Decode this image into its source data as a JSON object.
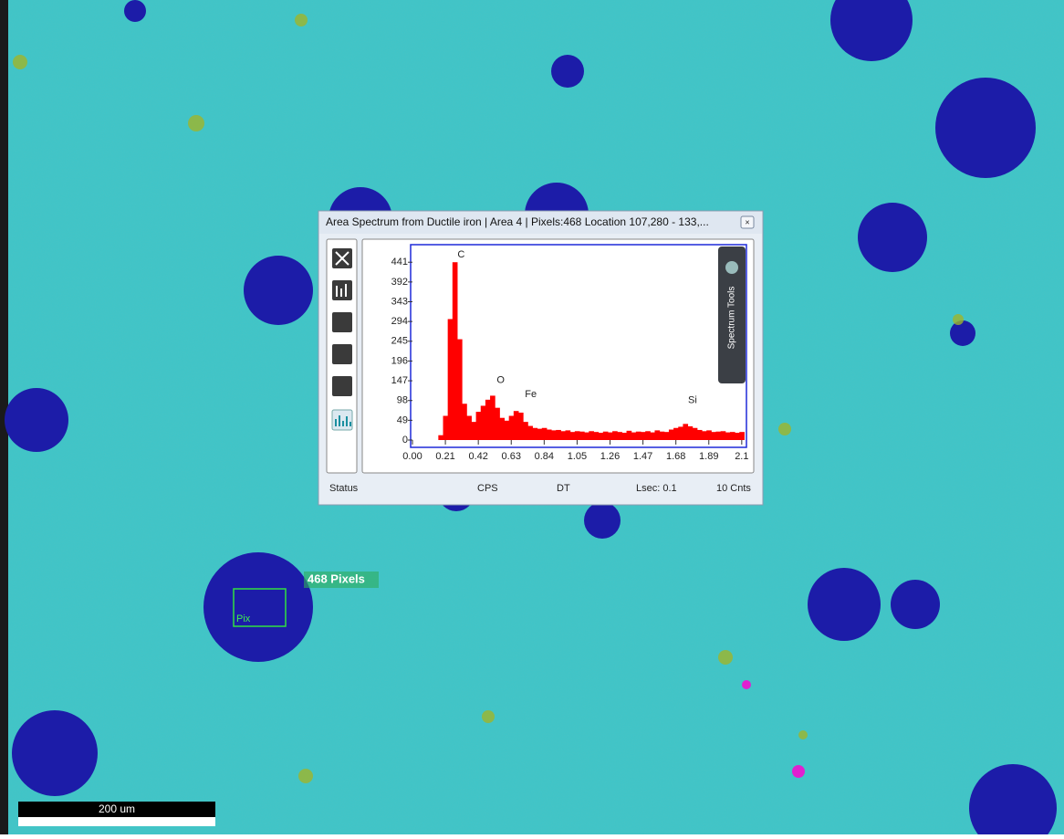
{
  "window": {
    "title": "Area Spectrum from Ductile iron | Area 4 |  Pixels:468 Location 107,280 - 133,..."
  },
  "side_tab": "Spectrum Tools",
  "status_bar": [
    "Status",
    "CPS",
    "DT",
    "Lsec: 0.1",
    "10 Cnts"
  ],
  "map": {
    "selection_label": "468 Pixels",
    "roi_label": "Pix",
    "scale_bar": "200 um"
  },
  "chart_data": {
    "type": "spectrum",
    "color": "#ff0000",
    "x": [
      0.15,
      0.18,
      0.21,
      0.24,
      0.27,
      0.3,
      0.33,
      0.36,
      0.39,
      0.42,
      0.45,
      0.48,
      0.51,
      0.54,
      0.57,
      0.6,
      0.63,
      0.66,
      0.69,
      0.72,
      0.75,
      0.78,
      0.81,
      0.84,
      0.87,
      0.9,
      0.93,
      0.96,
      0.99,
      1.02,
      1.05,
      1.08,
      1.11,
      1.14,
      1.17,
      1.2,
      1.23,
      1.26,
      1.29,
      1.32,
      1.35,
      1.38,
      1.41,
      1.44,
      1.47,
      1.5,
      1.53,
      1.56,
      1.59,
      1.62,
      1.65,
      1.68,
      1.71,
      1.74,
      1.77,
      1.8,
      1.83,
      1.86,
      1.89,
      1.92,
      1.95,
      1.98,
      2.01,
      2.04,
      2.07,
      2.1
    ],
    "values": [
      0,
      12,
      60,
      300,
      441,
      250,
      90,
      60,
      45,
      70,
      85,
      100,
      110,
      80,
      55,
      48,
      60,
      72,
      68,
      45,
      35,
      30,
      28,
      30,
      26,
      24,
      25,
      22,
      24,
      20,
      22,
      21,
      19,
      22,
      20,
      18,
      21,
      19,
      22,
      20,
      18,
      23,
      19,
      21,
      20,
      22,
      19,
      24,
      21,
      20,
      26,
      30,
      33,
      40,
      34,
      30,
      25,
      22,
      24,
      20,
      21,
      22,
      19,
      20,
      18,
      20
    ],
    "xlim": [
      0,
      2.13
    ],
    "ylim": [
      0,
      480
    ],
    "xticks": [
      {
        "value": 0,
        "label": "0.00"
      },
      0.21,
      0.42,
      0.63,
      0.84,
      1.05,
      1.26,
      1.47,
      1.68,
      1.89,
      2.1
    ],
    "yticks": [
      0,
      49,
      98,
      147,
      196,
      245,
      294,
      343,
      392,
      441
    ],
    "annotations": [
      {
        "text": "C",
        "x": 0.27,
        "y": 441
      },
      {
        "text": "O",
        "x": 0.52,
        "y": 130
      },
      {
        "text": "Fe",
        "x": 0.7,
        "y": 95
      },
      {
        "text": "Si",
        "x": 1.74,
        "y": 80
      }
    ]
  }
}
